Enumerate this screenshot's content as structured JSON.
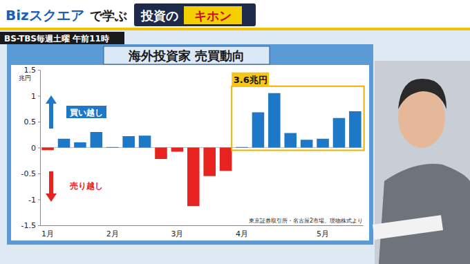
{
  "header": {
    "brand": "Bizスクエア",
    "brand_suffix": "で学ぶ",
    "series_prefix": "投資の",
    "series_title": "キホン",
    "broadcast": "BS-TBS毎週土曜 午前11時"
  },
  "chart_data": {
    "type": "bar",
    "title": "海外投資家 売買動向",
    "y_label": "兆円",
    "categories": [
      "1月",
      null,
      null,
      null,
      "2月",
      null,
      null,
      null,
      "3月",
      null,
      null,
      null,
      "4月",
      null,
      null,
      null,
      null,
      "5月",
      null,
      null
    ],
    "values": [
      -0.05,
      0.17,
      0.1,
      0.3,
      0.01,
      0.22,
      0.23,
      -0.22,
      -0.08,
      -1.13,
      -0.55,
      -0.45,
      0.01,
      0.68,
      1.05,
      0.28,
      0.15,
      0.17,
      0.57,
      0.7
    ],
    "colors": [
      "#e8231f",
      "#1e78c8",
      "#1e78c8",
      "#1e78c8",
      "#1e78c8",
      "#1e78c8",
      "#1e78c8",
      "#e8231f",
      "#e8231f",
      "#e8231f",
      "#e8231f",
      "#e8231f",
      "#1e78c8",
      "#1e78c8",
      "#1e78c8",
      "#1e78c8",
      "#1e78c8",
      "#1e78c8",
      "#1e78c8",
      "#1e78c8"
    ],
    "ylim": [
      -1.5,
      1.5
    ],
    "yticks": [
      -1.5,
      -1,
      -0.5,
      0,
      0.5,
      1,
      1.5
    ],
    "grid": false,
    "annotations": {
      "buy": "買い越し",
      "sell": "売り越し",
      "highlight": "3.6兆円",
      "source": "東京証券取引所・名古屋2市場、現物株式より"
    }
  }
}
